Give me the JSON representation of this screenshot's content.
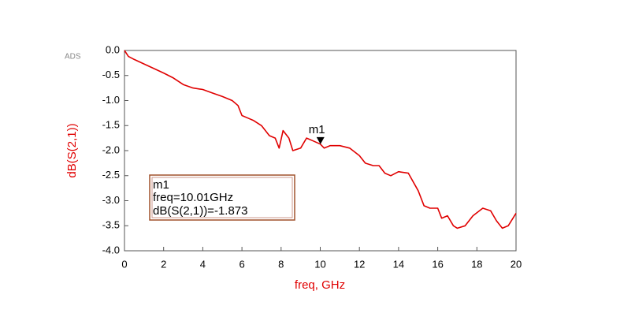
{
  "chart_data": {
    "type": "line",
    "watermark": "ADS",
    "xlabel": "freq, GHz",
    "ylabel": "dB(S(2,1))",
    "color": "#e00000",
    "x": [
      0,
      0.2,
      0.5,
      1,
      1.5,
      2,
      2.5,
      3,
      3.5,
      4,
      4.5,
      5,
      5.5,
      5.8,
      6,
      6.3,
      6.6,
      7,
      7.4,
      7.7,
      7.9,
      8.1,
      8.4,
      8.6,
      9,
      9.3,
      9.6,
      10,
      10.2,
      10.5,
      11,
      11.5,
      12,
      12.3,
      12.7,
      13,
      13.3,
      13.6,
      14,
      14.5,
      15,
      15.3,
      15.6,
      16,
      16.2,
      16.5,
      16.8,
      17,
      17.4,
      17.8,
      18.3,
      18.7,
      19,
      19.3,
      19.6,
      20
    ],
    "values": [
      0,
      -0.12,
      -0.18,
      -0.27,
      -0.36,
      -0.45,
      -0.55,
      -0.68,
      -0.75,
      -0.78,
      -0.85,
      -0.92,
      -1.0,
      -1.1,
      -1.3,
      -1.35,
      -1.4,
      -1.5,
      -1.7,
      -1.75,
      -1.95,
      -1.6,
      -1.75,
      -2.0,
      -1.95,
      -1.75,
      -1.8,
      -1.87,
      -1.95,
      -1.9,
      -1.9,
      -1.95,
      -2.1,
      -2.25,
      -2.3,
      -2.3,
      -2.45,
      -2.5,
      -2.42,
      -2.45,
      -2.8,
      -3.1,
      -3.15,
      -3.15,
      -3.35,
      -3.3,
      -3.5,
      -3.55,
      -3.5,
      -3.3,
      -3.15,
      -3.2,
      -3.4,
      -3.55,
      -3.5,
      -3.25
    ],
    "xlim": [
      0,
      20
    ],
    "xticks": [
      0,
      2,
      4,
      6,
      8,
      10,
      12,
      14,
      16,
      18,
      20
    ],
    "ylim": [
      -4,
      0
    ],
    "yticks": [
      {
        "value": 0,
        "label": "0.0"
      },
      -0.5,
      {
        "value": -1,
        "label": "-1.0"
      },
      -1.5,
      {
        "value": -2,
        "label": "-2.0"
      },
      -2.5,
      {
        "value": -3,
        "label": "-3.0"
      },
      -3.5,
      {
        "value": -4,
        "label": "-4.0"
      }
    ],
    "marker": {
      "name": "m1",
      "x": 10.01,
      "y": -1.873,
      "freq_text": "freq=10.01GHz",
      "value_text": "dB(S(2,1))=-1.873"
    }
  }
}
